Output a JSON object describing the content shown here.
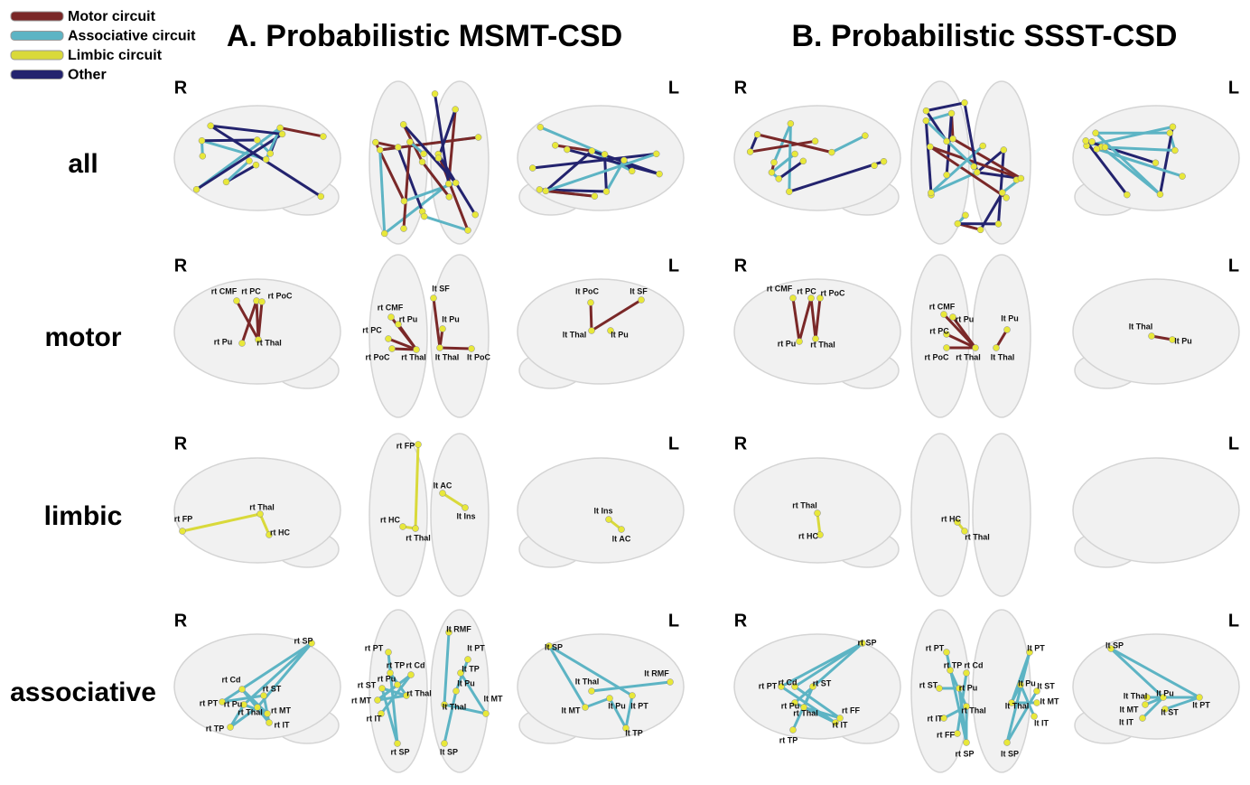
{
  "legend": [
    {
      "label": "Motor circuit",
      "color": "#7a2828"
    },
    {
      "label": "Associative circuit",
      "color": "#5db4c4"
    },
    {
      "label": "Limbic circuit",
      "color": "#d9d93a"
    },
    {
      "label": "Other",
      "color": "#23236e"
    }
  ],
  "row_labels": [
    "all",
    "motor",
    "limbic",
    "associative"
  ],
  "side_labels": [
    "R",
    "L"
  ],
  "panels": [
    {
      "title": "A. Probabilistic MSMT-CSD",
      "rows": [
        [
          [
            "rt CMF",
            "rt PC",
            "rt PoC",
            "rt Pu",
            "rt Thal"
          ],
          [
            "lt SF",
            "rt CMF",
            "rt Pu",
            "lt Pu",
            "rt PC",
            "rt PoC",
            "rt Thal",
            "lt Thal",
            "lt PoC"
          ],
          [
            "lt PoC",
            "lt SF",
            "lt Thal",
            "lt Pu"
          ]
        ],
        [
          [
            "rt FP",
            "rt Thal",
            "rt HC"
          ],
          [
            "rt FP",
            "lt AC",
            "rt HC",
            "lt Ins",
            "rt Thal"
          ],
          [
            "lt Ins",
            "lt AC"
          ]
        ],
        [
          [
            "rt SP",
            "rt Cd",
            "rt ST",
            "rt PT",
            "rt Pu",
            "rt MT",
            "rt Thal",
            "rt IT",
            "rt TP"
          ],
          [
            "rt PT",
            "rt TP",
            "rt Cd",
            "rt ST",
            "rt Pu",
            "rt Thal",
            "rt MT",
            "rt IT",
            "rt SP",
            "lt RMF",
            "lt PT",
            "lt TP",
            "lt Pu",
            "lt MT",
            "lt Thal",
            "lt SP"
          ],
          [
            "lt SP",
            "lt RMF",
            "lt Thal",
            "lt MT",
            "lt Pu",
            "lt PT",
            "lt TP"
          ]
        ]
      ]
    },
    {
      "title": "B. Probabilistic SSST-CSD",
      "rows": [
        [
          [
            "rt CMF",
            "rt PC",
            "rt PoC",
            "rt Pu",
            "rt Thal"
          ],
          [
            "rt CMF",
            "rt Pu",
            "lt Pu",
            "rt PC",
            "rt PoC",
            "rt Thal",
            "lt Thal"
          ],
          [
            "lt Thal",
            "lt Pu"
          ]
        ],
        [
          [
            "rt Thal",
            "rt HC"
          ],
          [
            "rt HC",
            "rt Thal"
          ],
          []
        ],
        [
          [
            "rt SP",
            "rt PT",
            "rt Cd",
            "rt ST",
            "rt Pu",
            "rt Thal",
            "rt FF",
            "rt IT",
            "rt TP"
          ],
          [
            "rt PT",
            "rt TP",
            "rt Cd",
            "rt ST",
            "rt Pu",
            "rt IT",
            "rt Thal",
            "rt FF",
            "rt SP",
            "lt PT",
            "lt Pu",
            "lt ST",
            "lt MT",
            "lt Thal",
            "lt IT",
            "lt SP"
          ],
          [
            "lt SP",
            "lt Pu",
            "lt Thal",
            "lt MT",
            "lt ST",
            "lt PT",
            "lt IT"
          ]
        ]
      ]
    }
  ]
}
